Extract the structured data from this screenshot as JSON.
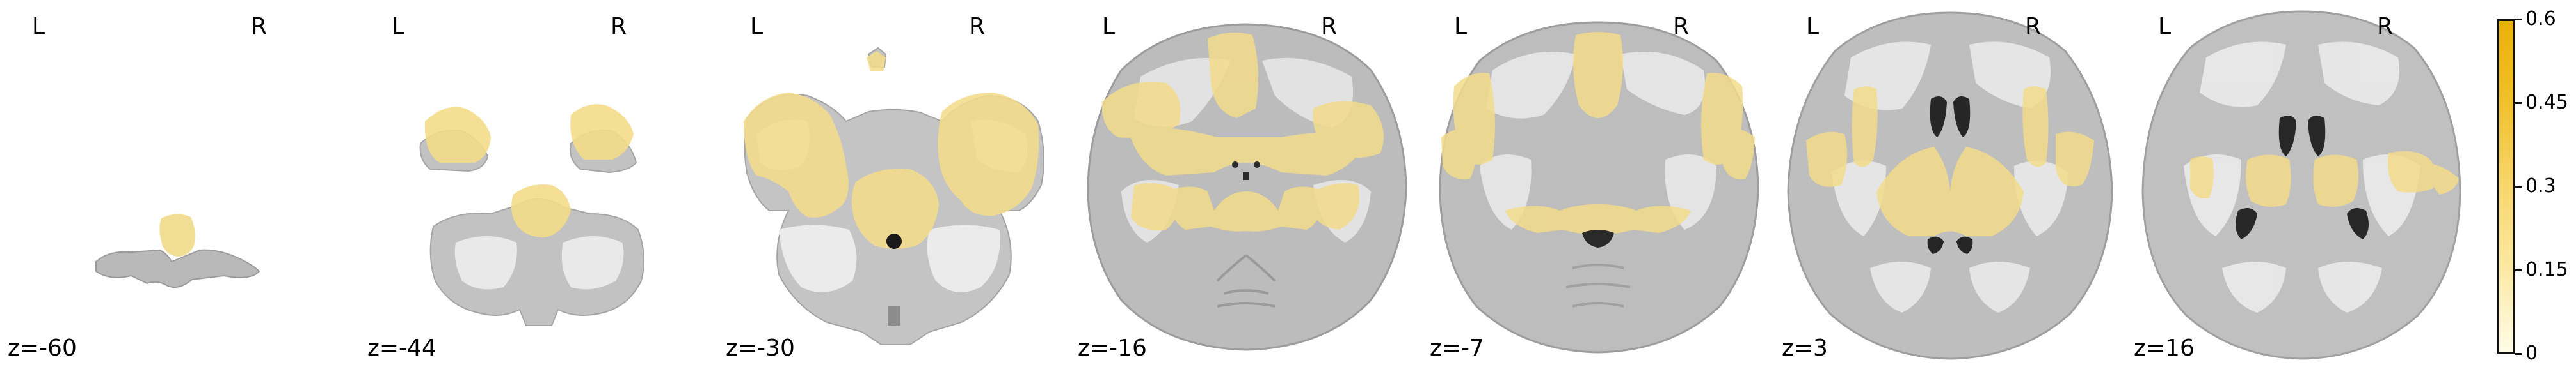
{
  "orientation": {
    "left_label": "L",
    "right_label": "R"
  },
  "slices": [
    {
      "z_label": "z=-60"
    },
    {
      "z_label": "z=-44"
    },
    {
      "z_label": "z=-30"
    },
    {
      "z_label": "z=-16"
    },
    {
      "z_label": "z=-7"
    },
    {
      "z_label": "z=3"
    },
    {
      "z_label": "z=16"
    }
  ],
  "colorbar": {
    "ticks": [
      "0",
      "0.15",
      "0.3",
      "0.45",
      "0.6"
    ],
    "min": 0,
    "max": 0.6,
    "colors": {
      "low": "#fffce8",
      "high": "#ebb10a",
      "overlay": "#f3dc8a"
    }
  }
}
